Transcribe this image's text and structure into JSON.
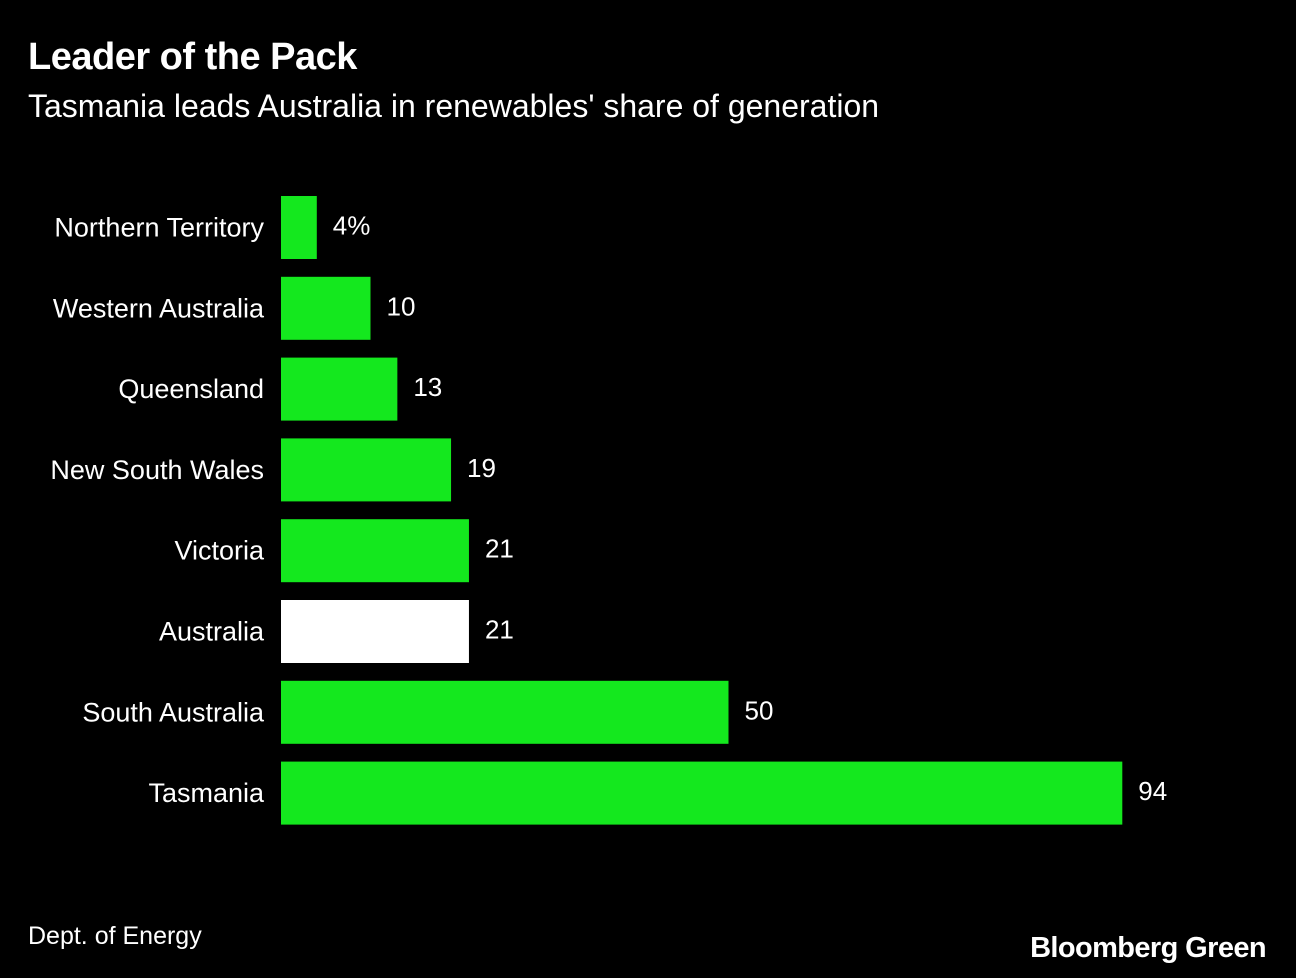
{
  "header": {
    "title": "Leader of the Pack",
    "subtitle": "Tasmania leads Australia in renewables' share of generation"
  },
  "footer": {
    "source": "Dept. of Energy",
    "brand": "Bloomberg Green"
  },
  "colors": {
    "background": "#000000",
    "bar": "#14e81e",
    "highlight_bar": "#ffffff",
    "text": "#ffffff"
  },
  "chart_data": {
    "type": "bar",
    "orientation": "horizontal",
    "title": "Leader of the Pack",
    "subtitle": "Tasmania leads Australia in renewables' share of generation",
    "unit": "%",
    "categories": [
      "Northern Territory",
      "Western Australia",
      "Queensland",
      "New South Wales",
      "Victoria",
      "Australia",
      "South Australia",
      "Tasmania"
    ],
    "values": [
      4,
      10,
      13,
      19,
      21,
      21,
      50,
      94
    ],
    "value_labels": [
      "4%",
      "10",
      "13",
      "19",
      "21",
      "21",
      "50",
      "94"
    ],
    "highlight": [
      "Australia"
    ],
    "xlim": [
      0,
      100
    ],
    "grid": false,
    "legend": "none"
  }
}
